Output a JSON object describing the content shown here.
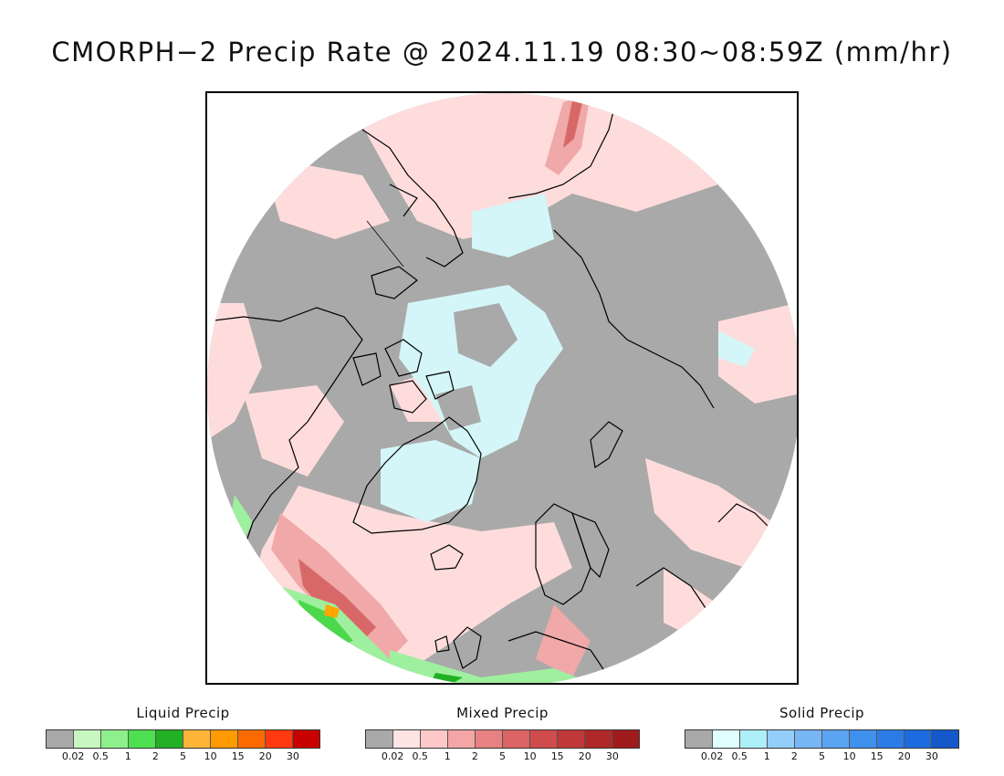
{
  "title": "CMORPH−2 Precip Rate @ 2024.11.19 08:30~08:59Z (mm/hr)",
  "map": {
    "projection": "north-polar-stereographic",
    "colors": {
      "no_precip": "#a9a9a9",
      "outside": "#ffffff",
      "coastline": "#000000",
      "mixed_light": "#ffdcdc",
      "mixed_mid": "#f0a8a8",
      "mixed_heavy": "#d86868",
      "solid_light": "#d4f6f8",
      "liquid_light": "#9ef09e",
      "liquid_mid": "#4cd84c",
      "liquid_heavy": "#22b022",
      "liquid_orange": "#ffa500"
    }
  },
  "legends": [
    {
      "title": "Liquid Precip",
      "colors": [
        "#a9a9a9",
        "#c8f8c0",
        "#8ef08a",
        "#4ce050",
        "#22b024",
        "#ffb438",
        "#ff9a00",
        "#ff6a00",
        "#ff3a10",
        "#c80000"
      ],
      "ticks": [
        "0.02",
        "0.5",
        "1",
        "2",
        "5",
        "10",
        "15",
        "20",
        "30"
      ]
    },
    {
      "title": "Mixed Precip",
      "colors": [
        "#a9a9a9",
        "#ffe4e4",
        "#ffc8c8",
        "#f4a6a6",
        "#e88282",
        "#dc6464",
        "#d04c4c",
        "#c03838",
        "#b02828",
        "#a01c1c"
      ],
      "ticks": [
        "0.02",
        "0.5",
        "1",
        "2",
        "5",
        "10",
        "15",
        "20",
        "30"
      ]
    },
    {
      "title": "Solid Precip",
      "colors": [
        "#a9a9a9",
        "#e0ffff",
        "#aef0fa",
        "#92cef8",
        "#78b6f6",
        "#5aa4f2",
        "#4090ee",
        "#2c7ce8",
        "#1c6ce0",
        "#1458cc"
      ],
      "ticks": [
        "0.02",
        "0.5",
        "1",
        "2",
        "5",
        "10",
        "15",
        "20",
        "30"
      ]
    }
  ]
}
